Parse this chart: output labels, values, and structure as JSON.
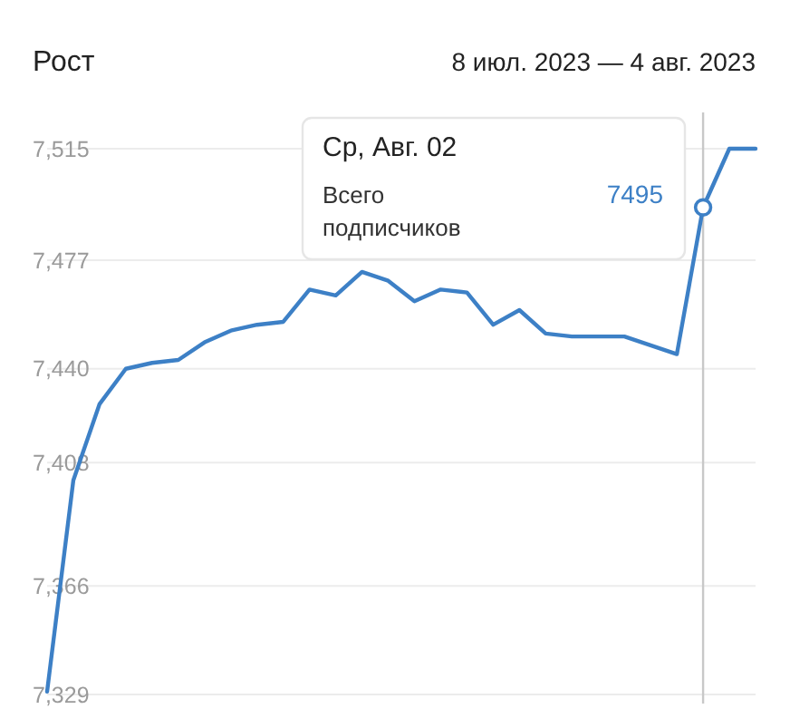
{
  "chart_data": {
    "type": "line",
    "title": "Рост",
    "subtitle": "8 июл. 2023 — 4 авг. 2023",
    "categories": [
      null,
      null,
      null,
      null,
      null,
      null,
      null,
      null,
      null,
      null,
      null,
      null,
      null,
      null,
      null,
      null,
      null,
      null,
      null,
      null,
      null,
      null,
      null,
      null,
      null,
      null,
      null,
      null
    ],
    "series": [
      {
        "color": "#3d80c6",
        "values": [
          7330,
          7402,
          7428,
          7440,
          7442,
          7443,
          7449,
          7453,
          7455,
          7456,
          7467,
          7465,
          7473,
          7470,
          7463,
          7467,
          7466,
          7455,
          7460,
          7452,
          7451,
          7451,
          7451,
          7448,
          7445,
          7495,
          7515,
          7515
        ],
        "value_labels": [
          null,
          null,
          null,
          null,
          null,
          null,
          null,
          null,
          null,
          null,
          null,
          null,
          null,
          null,
          null,
          null,
          null,
          null,
          null,
          null,
          null,
          null,
          null,
          null,
          null,
          "7495",
          null,
          null
        ]
      }
    ],
    "ylim": [
      7329,
      7515
    ],
    "yticks": [
      {
        "value": 7329,
        "label": "7,329"
      },
      {
        "value": 7366,
        "label": "7,366"
      },
      {
        "value": 7408,
        "label": "7,408"
      },
      {
        "value": 7440,
        "label": "7,440"
      },
      {
        "value": 7477,
        "label": "7,477"
      },
      {
        "value": 7515,
        "label": "7,515"
      }
    ],
    "tick_labels": "y",
    "grid": "y",
    "marker": "none",
    "line_style": "solid",
    "annotations": [
      "Ср, Авг. 02",
      "Всего подписчиков"
    ]
  }
}
